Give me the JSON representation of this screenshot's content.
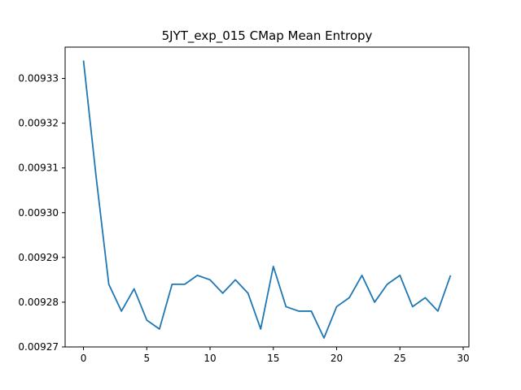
{
  "chart_data": {
    "type": "line",
    "title": "5JYT_exp_015 CMap Mean Entropy",
    "xlabel": "",
    "ylabel": "",
    "xlim": [
      -1.45,
      30.45
    ],
    "ylim": [
      0.00927,
      0.009337
    ],
    "x_ticks": [
      0,
      5,
      10,
      15,
      20,
      25,
      30
    ],
    "x_tick_labels": [
      "0",
      "5",
      "10",
      "15",
      "20",
      "25",
      "30"
    ],
    "y_ticks": [
      0.00927,
      0.00928,
      0.00929,
      0.0093,
      0.00931,
      0.00932,
      0.00933
    ],
    "y_tick_labels": [
      "0.00927",
      "0.00928",
      "0.00929",
      "0.00930",
      "0.00931",
      "0.00932",
      "0.00933"
    ],
    "grid": false,
    "series": [
      {
        "color": "#1f77b4",
        "x": [
          0,
          1,
          2,
          3,
          4,
          5,
          6,
          7,
          8,
          9,
          10,
          11,
          12,
          13,
          14,
          15,
          16,
          17,
          18,
          19,
          20,
          21,
          22,
          23,
          24,
          25,
          26,
          27,
          28,
          29
        ],
        "y": [
          0.009334,
          0.009308,
          0.009284,
          0.009278,
          0.009283,
          0.009276,
          0.009274,
          0.009284,
          0.009284,
          0.009286,
          0.009285,
          0.009282,
          0.009285,
          0.009282,
          0.009274,
          0.009288,
          0.009279,
          0.009278,
          0.009278,
          0.009272,
          0.009279,
          0.009281,
          0.009286,
          0.00928,
          0.009284,
          0.009286,
          0.009279,
          0.009281,
          0.009278,
          0.009286
        ]
      }
    ]
  }
}
